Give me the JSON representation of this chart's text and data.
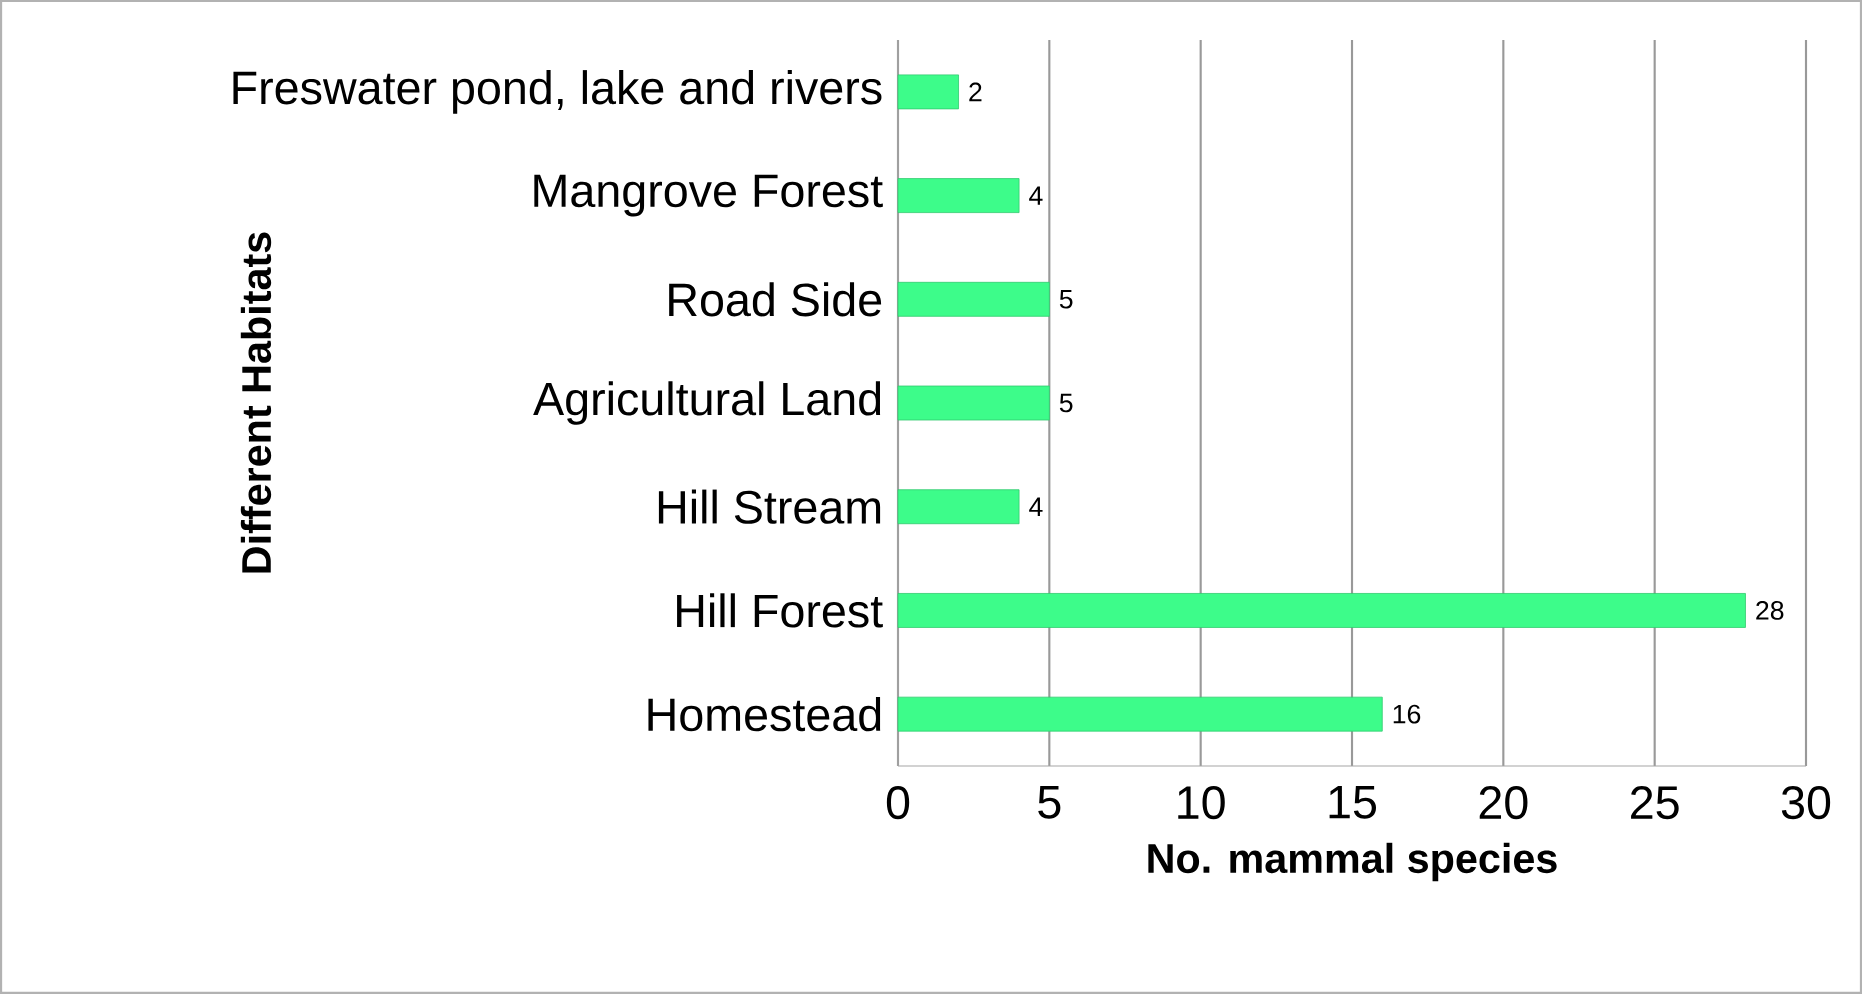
{
  "chart_data": {
    "type": "bar",
    "orientation": "horizontal",
    "xlabel": "No. mammal species",
    "ylabel": "Different Habitats",
    "categories": [
      "Freswater pond, lake and rivers",
      "Mangrove Forest",
      "Road Side",
      "Agricultural Land",
      "Hill Stream",
      "Hill Forest",
      "Homestead"
    ],
    "values": [
      2,
      4,
      5,
      5,
      4,
      28,
      16
    ],
    "color": "#3dfc8a",
    "data_labels": true,
    "xlim": [
      0,
      30
    ],
    "xticks": [
      0,
      5,
      10,
      15,
      20,
      25,
      30
    ],
    "grid": "x"
  }
}
